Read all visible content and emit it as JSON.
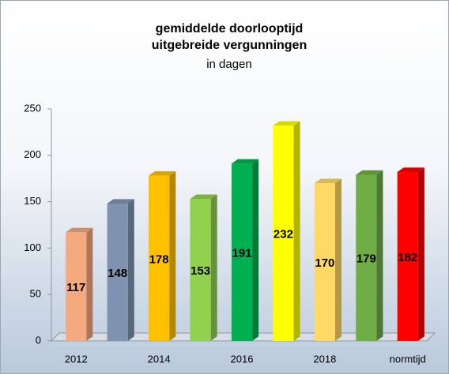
{
  "chart_data": {
    "type": "bar",
    "title": "gemiddelde doorlooptijd",
    "subtitle": "uitgebreide vergunningen",
    "unit_label": "in dagen",
    "categories": [
      "2012",
      null,
      "2014",
      null,
      "2016",
      null,
      "2018",
      null,
      "normtijd"
    ],
    "values": [
      117,
      148,
      178,
      153,
      191,
      232,
      170,
      179,
      182
    ],
    "colors": [
      "#f4a97f",
      "#7f93b0",
      "#ffc000",
      "#92d050",
      "#00b050",
      "#ffff00",
      "#ffd966",
      "#70ad47",
      "#ff0000"
    ],
    "ylim": [
      0,
      250
    ],
    "yticks": [
      0,
      50,
      100,
      150,
      200,
      250
    ],
    "grid": false
  }
}
